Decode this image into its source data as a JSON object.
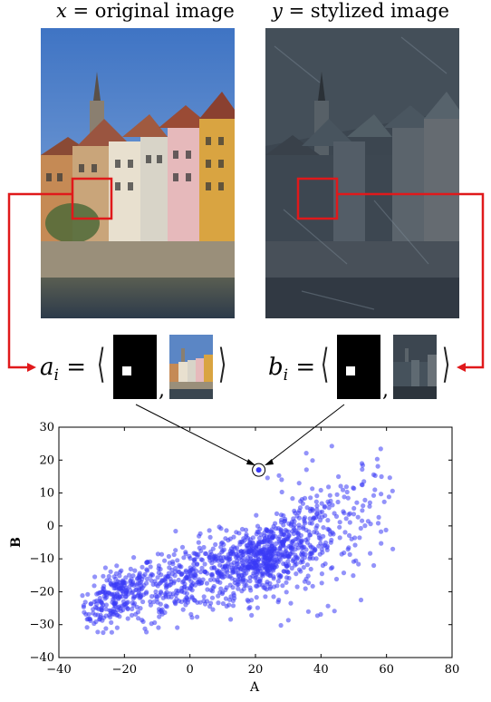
{
  "captions": {
    "left": {
      "var": "x",
      "text": "= original image"
    },
    "right": {
      "var": "y",
      "text": "= stylized image"
    }
  },
  "equations": {
    "left": {
      "lhs": "a",
      "sub": "i",
      "eq": "=",
      "comma": ","
    },
    "right": {
      "lhs": "b",
      "sub": "i",
      "eq": "=",
      "comma": ","
    }
  },
  "colors": {
    "highlight": "#e0191b",
    "points": "#3b3bf5",
    "sky": "#5b86c5",
    "stylized": "#3a4450"
  },
  "chart_data": {
    "type": "scatter",
    "xlabel": "A",
    "ylabel": "B",
    "xlim": [
      -40,
      80
    ],
    "ylim": [
      -40,
      30
    ],
    "xticks": [
      -40,
      -20,
      0,
      20,
      40,
      60,
      80
    ],
    "yticks": [
      -40,
      -30,
      -20,
      -10,
      0,
      10,
      20,
      30
    ],
    "highlighted_point": {
      "x": 21,
      "y": 17
    },
    "cluster_centers": [
      {
        "x": -22,
        "y": -21,
        "spread_x": 6,
        "spread_y": 4,
        "n": 260
      },
      {
        "x": 0,
        "y": -16,
        "spread_x": 10,
        "spread_y": 5,
        "n": 320
      },
      {
        "x": 22,
        "y": -10,
        "spread_x": 7,
        "spread_y": 5,
        "n": 520
      },
      {
        "x": 40,
        "y": -3,
        "spread_x": 11,
        "spread_y": 10,
        "n": 280
      }
    ]
  }
}
